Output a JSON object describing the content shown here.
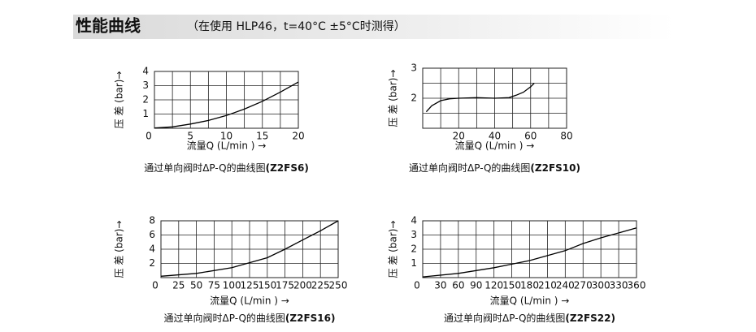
{
  "title": "性能曲线",
  "subtitle": "（在使用 HLP46，t=40°C ±5°C时测得）",
  "chart_data": [
    {
      "type": "line",
      "x_label": "流量Q (L/min ) →",
      "y_label": "压 差 (bar)→",
      "caption": "通过单向阀时ΔP-Q的曲线图",
      "model": "(Z2FS6)",
      "x": [
        0,
        2.5,
        5,
        7.5,
        10,
        12.5,
        15,
        17.5,
        20
      ],
      "values": [
        0.02,
        0.1,
        0.3,
        0.55,
        0.9,
        1.35,
        1.9,
        2.55,
        3.25
      ],
      "xlim": [
        0,
        20
      ],
      "xticks": [
        0,
        5,
        10,
        15,
        20
      ],
      "ylim": [
        0,
        4
      ],
      "yticks": [
        1,
        2,
        3,
        4
      ],
      "grid": true,
      "xgrid_minor": true,
      "ygrid_minor": false,
      "color": "#000000"
    },
    {
      "type": "line",
      "x_label": "流量Q (L/min ) →",
      "y_label": "压 差 (bar)→",
      "caption": "通过单向阀时ΔP-Q的曲线图",
      "model": "(Z2FS10)",
      "x": [
        2,
        5,
        10,
        15,
        20,
        30,
        40,
        48,
        52,
        56,
        60,
        62
      ],
      "values": [
        1.55,
        1.75,
        1.92,
        1.98,
        2.0,
        2.02,
        2.0,
        2.02,
        2.1,
        2.2,
        2.38,
        2.5
      ],
      "xlim": [
        0,
        80
      ],
      "xticks": [
        20,
        40,
        60,
        80
      ],
      "ylim": [
        1,
        3
      ],
      "yticks": [
        2,
        3
      ],
      "grid": true,
      "xgrid_minor": true,
      "ygrid_minor": true,
      "color": "#000000"
    },
    {
      "type": "line",
      "x_label": "流量Q (L/min ) →",
      "y_label": "压 差 (bar)→",
      "caption": "通过单向阀时ΔP-Q的曲线图",
      "model": "(Z2FS16)",
      "x": [
        0,
        50,
        100,
        150,
        175,
        200,
        225,
        250
      ],
      "values": [
        0.2,
        0.6,
        1.4,
        2.8,
        4,
        5.3,
        6.6,
        8
      ],
      "xlim": [
        0,
        250
      ],
      "xticks": [
        0,
        25,
        50,
        75,
        100,
        125,
        150,
        175,
        200,
        225,
        250
      ],
      "ylim": [
        0,
        8
      ],
      "yticks": [
        2,
        4,
        6,
        8
      ],
      "grid": true,
      "xgrid_minor": false,
      "ygrid_minor": false,
      "color": "#000000"
    },
    {
      "type": "line",
      "x_label": "流量Q (L/min ) →",
      "y_label": "压 差 (bar)→",
      "caption": "通过单向阀时ΔP-Q的曲线图",
      "model": "(Z2FS22)",
      "x": [
        0,
        60,
        120,
        180,
        240,
        270,
        300,
        360
      ],
      "values": [
        0.05,
        0.3,
        0.7,
        1.2,
        1.9,
        2.4,
        2.8,
        3.5
      ],
      "xlim": [
        0,
        360
      ],
      "xticks": [
        0,
        30,
        60,
        90,
        120,
        150,
        180,
        210,
        240,
        270,
        300,
        330,
        360
      ],
      "ylim": [
        0,
        4
      ],
      "yticks": [
        1,
        2,
        3,
        4
      ],
      "grid": true,
      "xgrid_minor": false,
      "ygrid_minor": false,
      "color": "#000000"
    }
  ]
}
